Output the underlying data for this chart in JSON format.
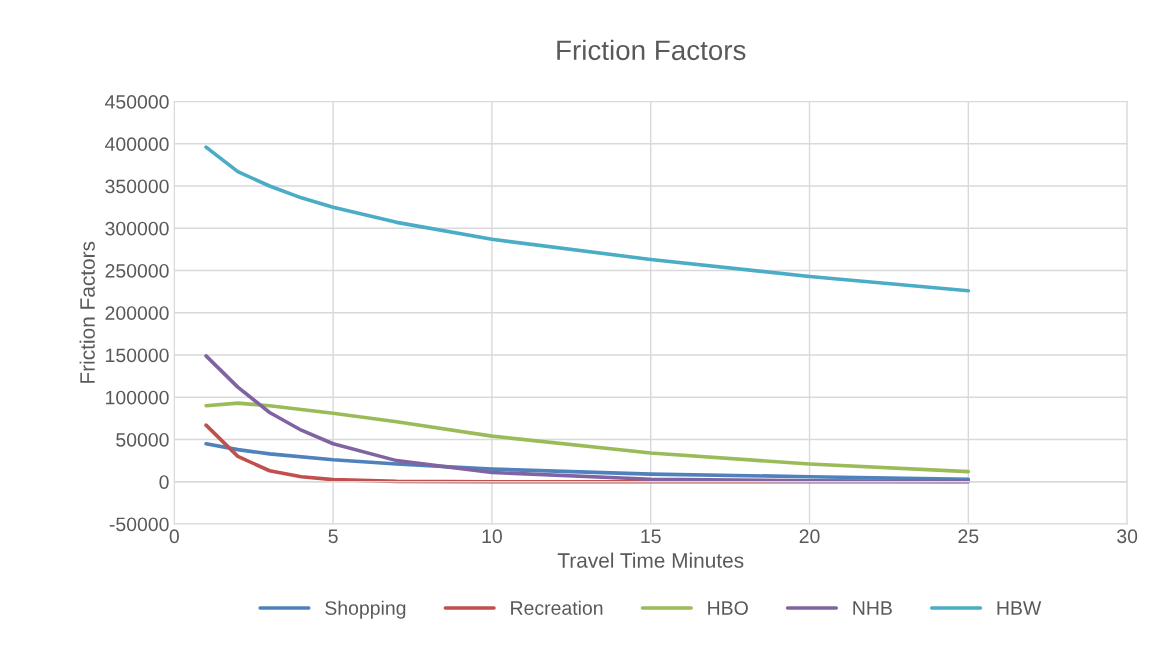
{
  "chart_data": {
    "type": "line",
    "title": "Friction Factors",
    "xlabel": "Travel Time Minutes",
    "ylabel": "Friction Factors",
    "xlim": [
      0,
      30
    ],
    "xticks": [
      0,
      5,
      10,
      15,
      20,
      25,
      30
    ],
    "ylim": [
      -50000,
      450000
    ],
    "yticks": [
      -50000,
      0,
      50000,
      100000,
      150000,
      200000,
      250000,
      300000,
      350000,
      400000,
      450000
    ],
    "grid": true,
    "legend": "bottom",
    "marker": "none",
    "line_style": "solid",
    "series": [
      {
        "name": "Shopping",
        "color": "#4f81bd",
        "x": [
          1,
          2,
          3,
          5,
          7,
          10,
          15,
          20,
          25
        ],
        "values": [
          45000,
          38000,
          33000,
          26000,
          21000,
          15000,
          9000,
          6000,
          3000
        ]
      },
      {
        "name": "Recreation",
        "color": "#c0504d",
        "x": [
          1,
          2,
          3,
          4,
          5,
          7,
          10,
          25
        ],
        "values": [
          67000,
          30000,
          13000,
          6000,
          2500,
          500,
          0,
          0
        ]
      },
      {
        "name": "HBO",
        "color": "#9bbb59",
        "x": [
          1,
          2,
          3,
          5,
          7,
          10,
          15,
          20,
          25
        ],
        "values": [
          90000,
          93000,
          90000,
          81000,
          71000,
          54000,
          34000,
          21000,
          12000
        ]
      },
      {
        "name": "NHB",
        "color": "#8064a2",
        "x": [
          1,
          2,
          3,
          4,
          5,
          7,
          10,
          15,
          20,
          25
        ],
        "values": [
          149000,
          112000,
          82000,
          61000,
          45000,
          25000,
          11000,
          3000,
          1000,
          500
        ]
      },
      {
        "name": "HBW",
        "color": "#4bacc6",
        "x": [
          1,
          2,
          3,
          4,
          5,
          7,
          10,
          15,
          20,
          25
        ],
        "values": [
          396000,
          367000,
          350000,
          336000,
          325000,
          307000,
          287000,
          263000,
          243000,
          226000
        ]
      }
    ]
  }
}
